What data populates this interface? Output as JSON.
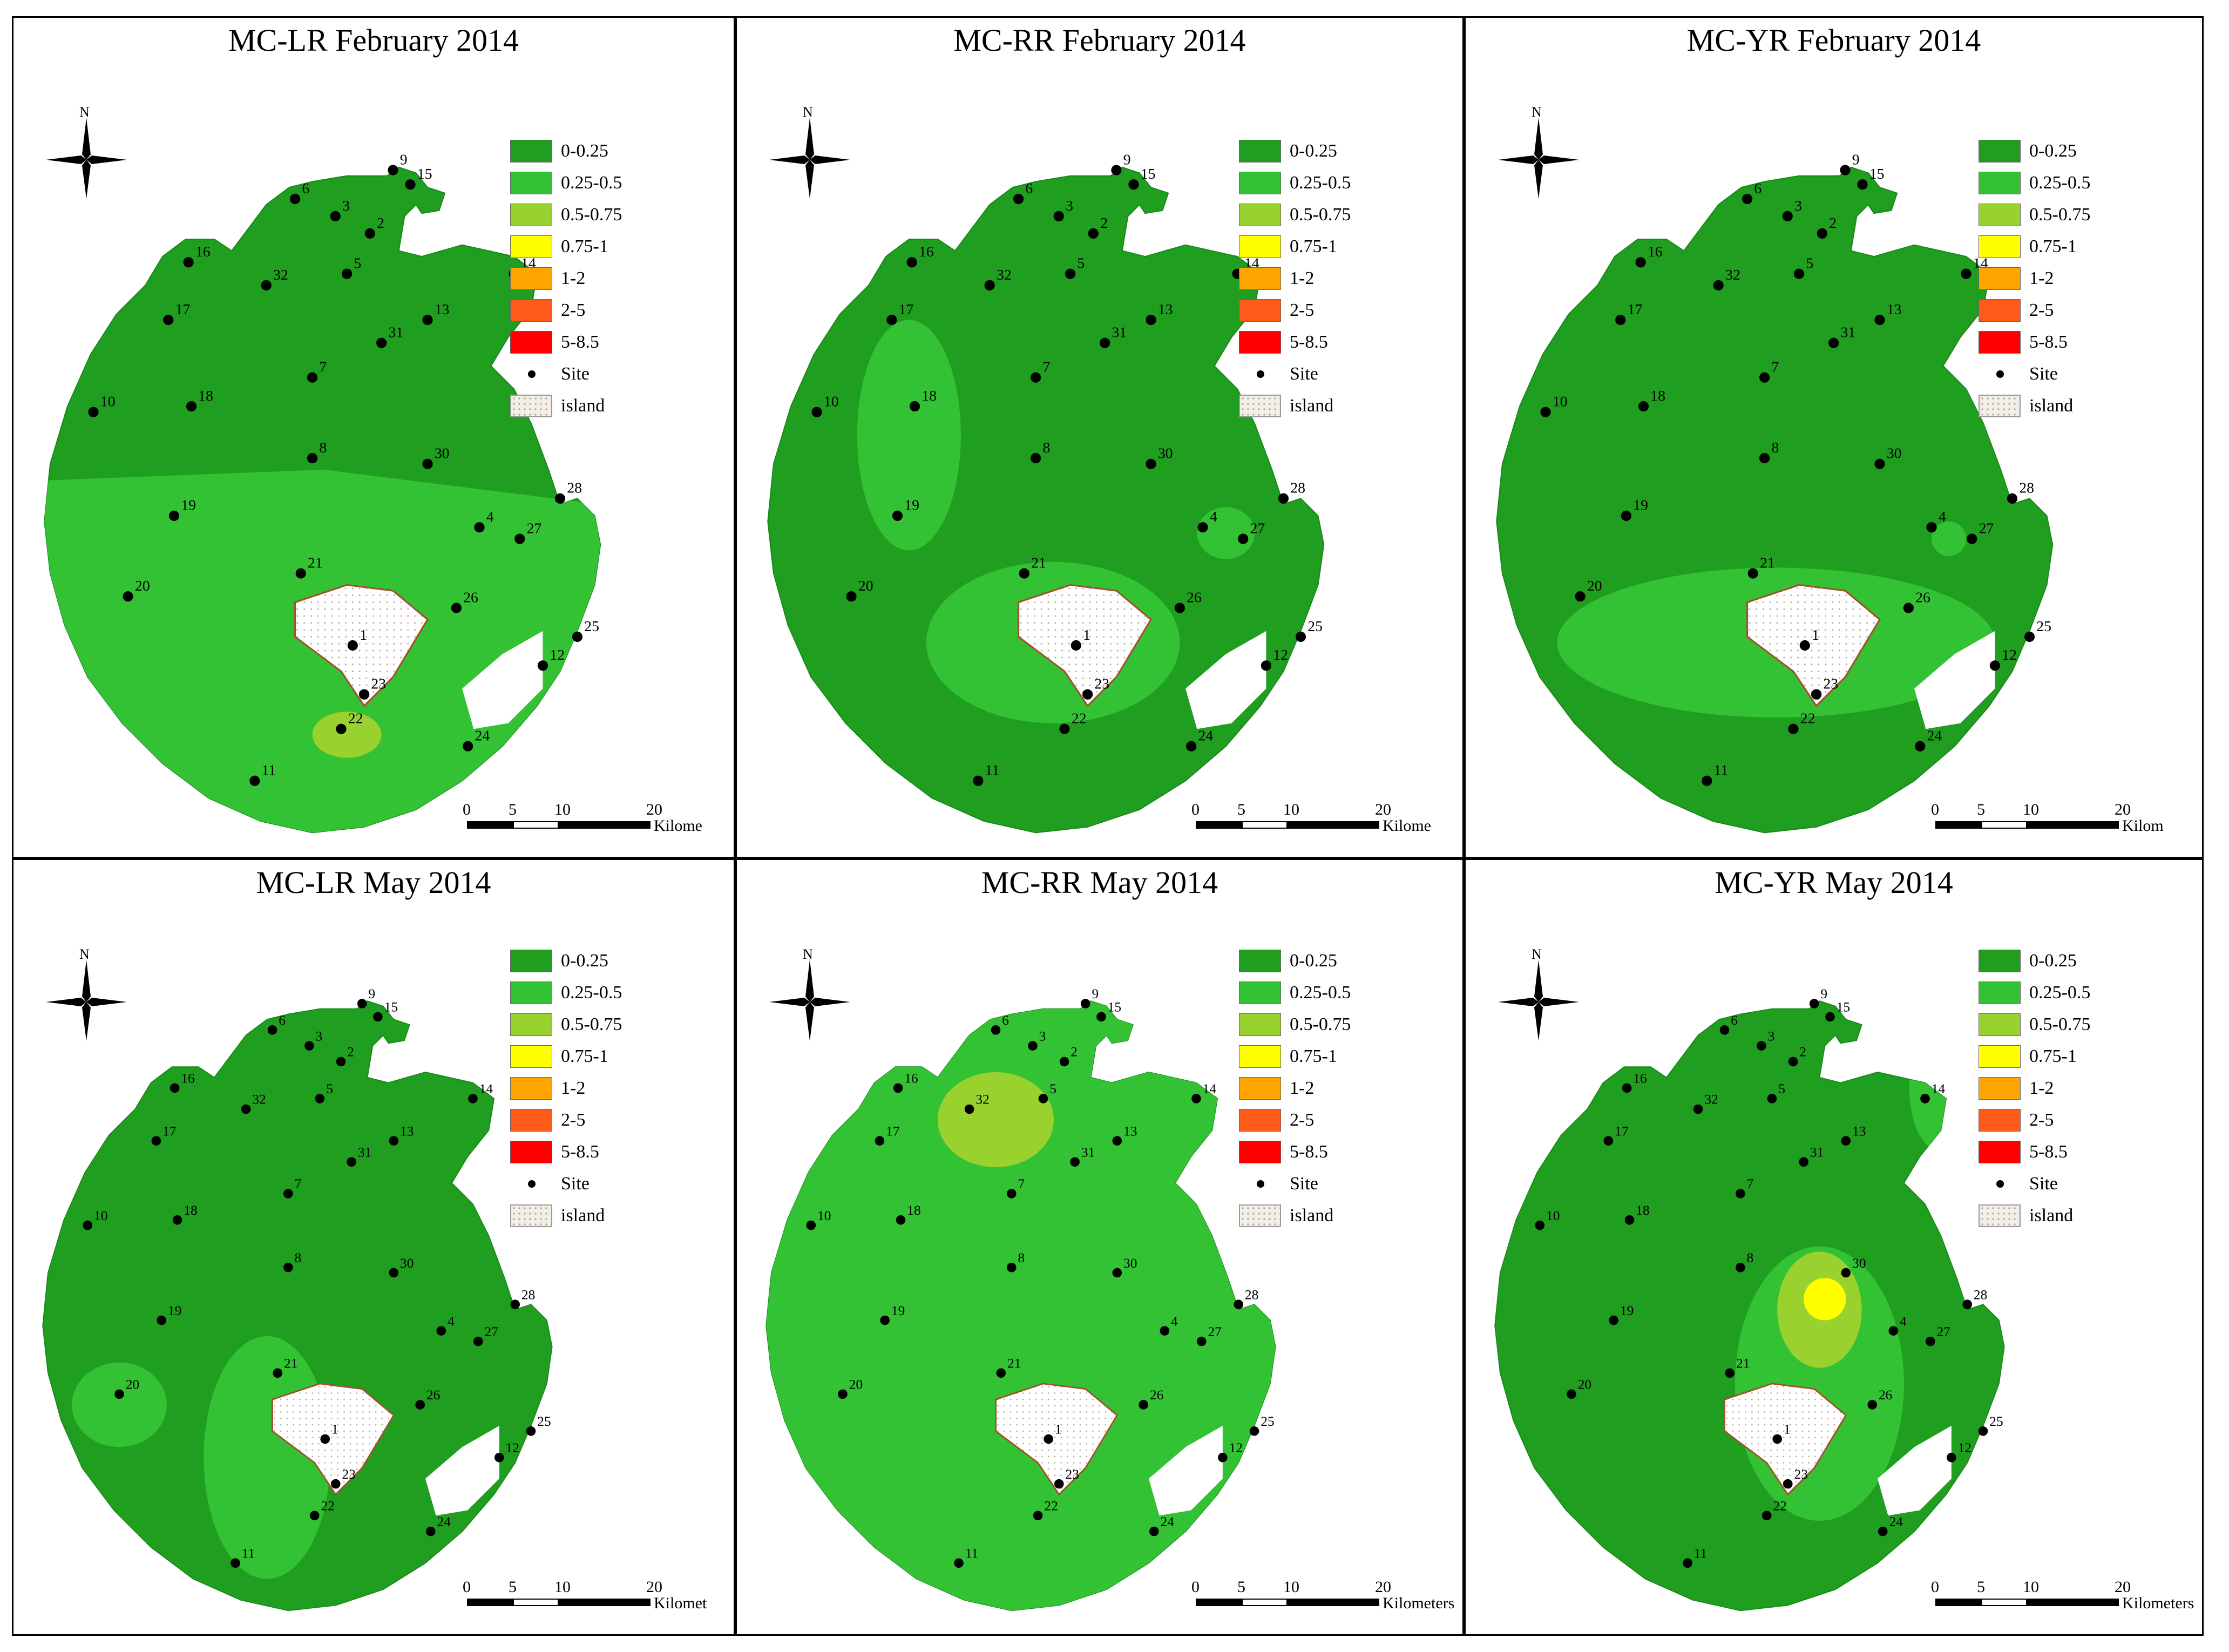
{
  "figure": {
    "panels": [
      {
        "title": "MC-LR February 2014",
        "scale_unit": "Kilome",
        "variant": "feb-lr"
      },
      {
        "title": "MC-RR February 2014",
        "scale_unit": "Kilome",
        "variant": "feb-rr"
      },
      {
        "title": "MC-YR February 2014",
        "scale_unit": "Kilom",
        "variant": "feb-yr"
      },
      {
        "title": "MC-LR May 2014",
        "scale_unit": "Kilomet",
        "variant": "may-lr"
      },
      {
        "title": "MC-RR May 2014",
        "scale_unit": "Kilometers",
        "variant": "may-rr"
      },
      {
        "title": "MC-YR May 2014",
        "scale_unit": "Kilometers",
        "variant": "may-yr"
      }
    ],
    "legend": {
      "classes": [
        {
          "label": "0-0.25",
          "color": "#1f9e1f"
        },
        {
          "label": "0.25-0.5",
          "color": "#33c233"
        },
        {
          "label": "0.5-0.75",
          "color": "#99d22e"
        },
        {
          "label": "0.75-1",
          "color": "#ffff00"
        },
        {
          "label": "1-2",
          "color": "#ffa500"
        },
        {
          "label": "2-5",
          "color": "#ff5a1a"
        },
        {
          "label": "5-8.5",
          "color": "#ff0000"
        }
      ],
      "site_label": "Site",
      "island_label": "island"
    },
    "north_label": "N",
    "scale_ticks": [
      "0",
      "5",
      "10",
      "20"
    ],
    "site_numbers": [
      "9",
      "15",
      "6",
      "3",
      "2",
      "16",
      "32",
      "5",
      "14",
      "17",
      "13",
      "31",
      "7",
      "10",
      "18",
      "8",
      "30",
      "28",
      "19",
      "27",
      "4",
      "21",
      "20",
      "26",
      "25",
      "23",
      "12",
      "22",
      "24",
      "11",
      "1"
    ]
  }
}
